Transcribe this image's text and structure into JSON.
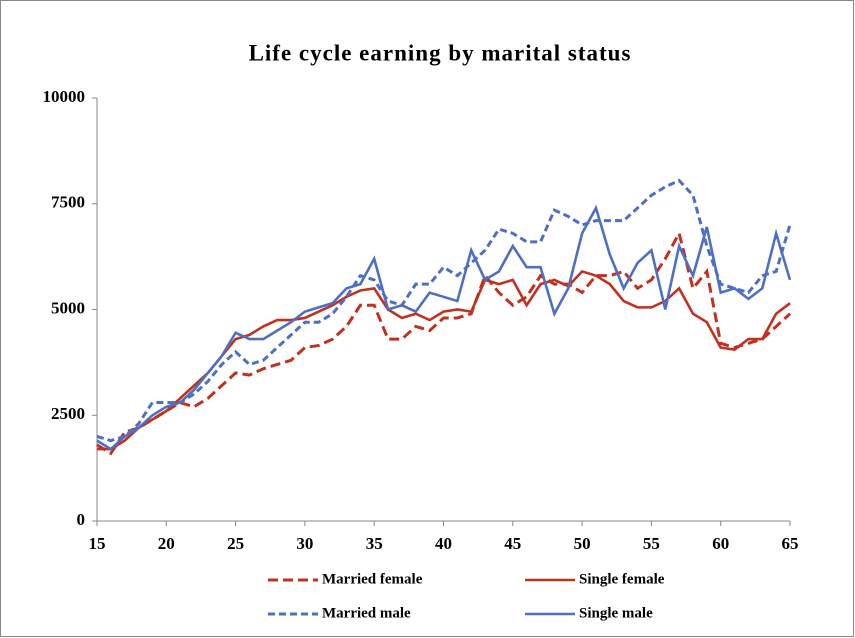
{
  "chart_data": {
    "type": "line",
    "title": "Life cycle earning by marital status",
    "x": [
      15,
      16,
      17,
      18,
      19,
      20,
      21,
      22,
      23,
      24,
      25,
      26,
      27,
      28,
      29,
      30,
      31,
      32,
      33,
      34,
      35,
      36,
      37,
      38,
      39,
      40,
      41,
      42,
      43,
      44,
      45,
      46,
      47,
      48,
      49,
      50,
      51,
      52,
      53,
      54,
      55,
      56,
      57,
      58,
      59,
      60,
      61,
      62,
      63,
      64,
      65
    ],
    "xlim": [
      15,
      65
    ],
    "xticks": [
      15,
      20,
      25,
      30,
      35,
      40,
      45,
      50,
      55,
      60,
      65
    ],
    "ylim": [
      0,
      10000
    ],
    "yticks": [
      0,
      2500,
      5000,
      7500,
      10000
    ],
    "grid": false,
    "legend": "bottom",
    "series": [
      {
        "name": "Married female",
        "color": "#c0321f",
        "dashed": true,
        "values": [
          1800,
          1600,
          2100,
          2200,
          2400,
          2600,
          2800,
          2700,
          2900,
          3200,
          3500,
          3450,
          3600,
          3700,
          3800,
          4100,
          4150,
          4300,
          4600,
          5100,
          5100,
          4300,
          4300,
          4600,
          4500,
          4800,
          4800,
          4900,
          5800,
          5400,
          5100,
          5300,
          5800,
          5600,
          5600,
          5400,
          5800,
          5800,
          5900,
          5500,
          5700,
          6200,
          6800,
          5500,
          5900,
          4200,
          4100,
          4200,
          4300,
          4600,
          4900
        ]
      },
      {
        "name": "Single female",
        "color": "#c0321f",
        "dashed": false,
        "values": [
          1700,
          1700,
          1900,
          2200,
          2400,
          2600,
          2900,
          3200,
          3500,
          3900,
          4300,
          4400,
          4600,
          4750,
          4750,
          4800,
          4950,
          5100,
          5300,
          5450,
          5500,
          5000,
          4800,
          4900,
          4750,
          4950,
          5000,
          4950,
          5700,
          5600,
          5700,
          5100,
          5600,
          5700,
          5550,
          5900,
          5800,
          5600,
          5200,
          5050,
          5050,
          5200,
          5500,
          4900,
          4700,
          4100,
          4050,
          4300,
          4300,
          4900,
          5150
        ]
      },
      {
        "name": "Married male",
        "color": "#4f6fc4",
        "dashed": true,
        "values": [
          2000,
          1900,
          2000,
          2300,
          2800,
          2800,
          2800,
          3000,
          3300,
          3700,
          4000,
          3700,
          3800,
          4100,
          4400,
          4700,
          4700,
          4900,
          5300,
          5800,
          5700,
          5200,
          5100,
          5600,
          5600,
          6000,
          5800,
          6100,
          6400,
          6900,
          6800,
          6600,
          6600,
          7350,
          7200,
          7000,
          7100,
          7100,
          7100,
          7400,
          7700,
          7900,
          8050,
          7700,
          6500,
          5600,
          5500,
          5400,
          5800,
          5900,
          7000
        ]
      },
      {
        "name": "Single male",
        "color": "#4f6fc4",
        "dashed": false,
        "values": [
          1900,
          1700,
          2000,
          2200,
          2500,
          2700,
          2800,
          3100,
          3500,
          3900,
          4450,
          4300,
          4300,
          4500,
          4700,
          4950,
          5050,
          5150,
          5500,
          5600,
          6200,
          5000,
          5100,
          4950,
          5400,
          5300,
          5200,
          6400,
          5700,
          5900,
          6500,
          6000,
          6000,
          4900,
          5500,
          6800,
          7400,
          6300,
          5500,
          6100,
          6400,
          5000,
          6500,
          5800,
          6950,
          5400,
          5500,
          5250,
          5500,
          6800,
          5700
        ]
      }
    ]
  }
}
